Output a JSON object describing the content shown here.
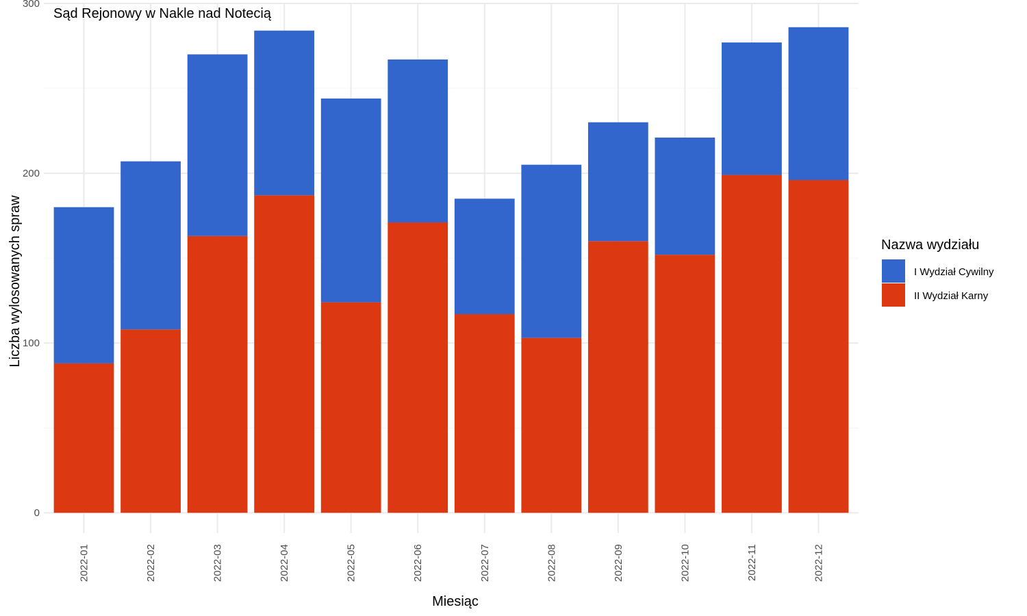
{
  "chart_data": {
    "type": "bar",
    "stacked": true,
    "title": "Sąd Rejonowy w Nakle nad Notecią",
    "xlabel": "Miesiąc",
    "ylabel": "Liczba wylosowanych spraw",
    "ylim": [
      -12,
      300
    ],
    "yticks": [
      0,
      100,
      200,
      300
    ],
    "grid": true,
    "legend": {
      "title": "Nazwa wydziału",
      "position": "right"
    },
    "categories": [
      "2022-01",
      "2022-02",
      "2022-03",
      "2022-04",
      "2022-05",
      "2022-06",
      "2022-07",
      "2022-08",
      "2022-09",
      "2022-10",
      "2022-11",
      "2022-12"
    ],
    "series": [
      {
        "name": "II Wydział Karny",
        "color": "#dc3912",
        "values": [
          88,
          108,
          163,
          187,
          124,
          171,
          117,
          103,
          160,
          152,
          199,
          196
        ]
      },
      {
        "name": "I Wydział Cywilny",
        "color": "#3366cc",
        "values": [
          92,
          99,
          107,
          97,
          120,
          96,
          68,
          102,
          70,
          69,
          78,
          90
        ]
      }
    ],
    "legend_order": [
      "I Wydział Cywilny",
      "II Wydział Karny"
    ]
  }
}
